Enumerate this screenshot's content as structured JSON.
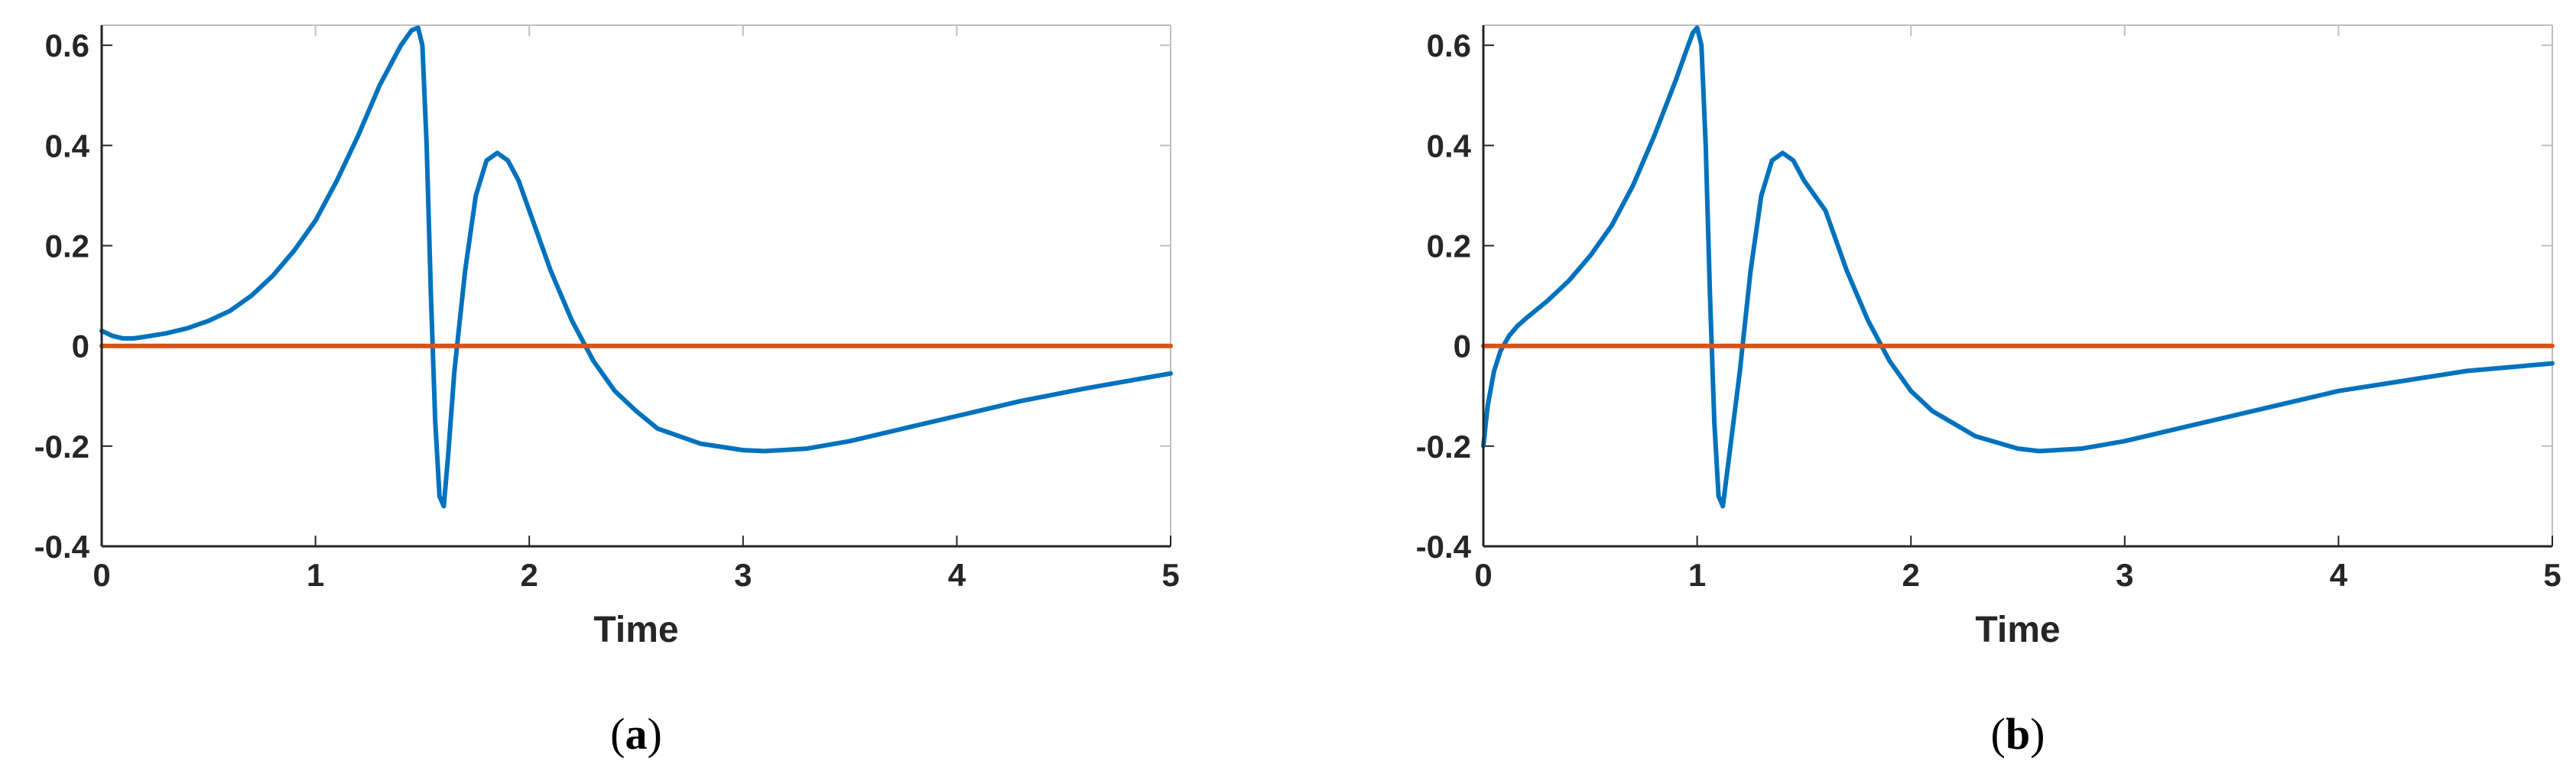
{
  "colors": {
    "series_blue": "#0072BD",
    "series_orange": "#D95319",
    "axis": "#262626",
    "box": "#BFBFBF"
  },
  "chart_data": [
    {
      "type": "line",
      "panel_label": {
        "open": "(",
        "letter": "a",
        "close": ")"
      },
      "xlabel": "Time",
      "ylabel": "",
      "xlim": [
        0,
        5
      ],
      "ylim": [
        -0.4,
        0.64
      ],
      "xticks": [
        0,
        1,
        2,
        3,
        4,
        5
      ],
      "xtick_labels": [
        "0",
        "1",
        "2",
        "3",
        "4",
        "5"
      ],
      "yticks": [
        -0.4,
        -0.2,
        0,
        0.2,
        0.4,
        0.6
      ],
      "ytick_labels": [
        "-0.4",
        "-0.2",
        "0",
        "0.2",
        "0.4",
        "0.6"
      ],
      "grid": false,
      "series": [
        {
          "color": "#0072BD",
          "x": [
            0,
            0.05,
            0.1,
            0.15,
            0.2,
            0.3,
            0.4,
            0.5,
            0.6,
            0.7,
            0.8,
            0.9,
            1.0,
            1.1,
            1.2,
            1.3,
            1.4,
            1.45,
            1.48,
            1.5,
            1.52,
            1.54,
            1.56,
            1.58,
            1.6,
            1.62,
            1.65,
            1.7,
            1.75,
            1.8,
            1.85,
            1.9,
            1.95,
            2.0,
            2.1,
            2.2,
            2.3,
            2.4,
            2.5,
            2.6,
            2.8,
            3.0,
            3.1,
            3.3,
            3.5,
            3.8,
            4.0,
            4.3,
            4.6,
            5.0
          ],
          "y": [
            0.03,
            0.02,
            0.015,
            0.015,
            0.018,
            0.025,
            0.035,
            0.05,
            0.07,
            0.1,
            0.14,
            0.19,
            0.25,
            0.33,
            0.42,
            0.52,
            0.6,
            0.63,
            0.635,
            0.6,
            0.4,
            0.1,
            -0.15,
            -0.3,
            -0.32,
            -0.22,
            -0.05,
            0.15,
            0.3,
            0.37,
            0.385,
            0.37,
            0.33,
            0.27,
            0.15,
            0.05,
            -0.03,
            -0.09,
            -0.13,
            -0.165,
            -0.195,
            -0.208,
            -0.21,
            -0.205,
            -0.19,
            -0.16,
            -0.14,
            -0.11,
            -0.085,
            -0.055
          ]
        },
        {
          "color": "#D95319",
          "x": [
            0,
            5
          ],
          "y": [
            0,
            0
          ]
        }
      ]
    },
    {
      "type": "line",
      "panel_label": {
        "open": "(",
        "letter": "b",
        "close": ")"
      },
      "xlabel": "Time",
      "ylabel": "",
      "xlim": [
        0,
        5
      ],
      "ylim": [
        -0.4,
        0.64
      ],
      "xticks": [
        0,
        1,
        2,
        3,
        4,
        5
      ],
      "xtick_labels": [
        "0",
        "1",
        "2",
        "3",
        "4",
        "5"
      ],
      "yticks": [
        -0.4,
        -0.2,
        0,
        0.2,
        0.4,
        0.6
      ],
      "ytick_labels": [
        "-0.4",
        "-0.2",
        "0",
        "0.2",
        "0.4",
        "0.6"
      ],
      "grid": false,
      "series": [
        {
          "color": "#0072BD",
          "x": [
            0,
            0.02,
            0.05,
            0.08,
            0.12,
            0.16,
            0.2,
            0.3,
            0.4,
            0.5,
            0.6,
            0.7,
            0.8,
            0.9,
            0.95,
            0.98,
            1.0,
            1.02,
            1.04,
            1.06,
            1.08,
            1.1,
            1.12,
            1.15,
            1.2,
            1.25,
            1.3,
            1.35,
            1.4,
            1.45,
            1.5,
            1.6,
            1.7,
            1.8,
            1.9,
            2.0,
            2.1,
            2.3,
            2.5,
            2.6,
            2.8,
            3.0,
            3.3,
            3.5,
            3.8,
            4.0,
            4.3,
            4.6,
            5.0
          ],
          "y": [
            -0.2,
            -0.12,
            -0.05,
            -0.01,
            0.02,
            0.04,
            0.055,
            0.09,
            0.13,
            0.18,
            0.24,
            0.32,
            0.42,
            0.53,
            0.59,
            0.625,
            0.635,
            0.6,
            0.4,
            0.1,
            -0.15,
            -0.3,
            -0.32,
            -0.22,
            -0.05,
            0.15,
            0.3,
            0.37,
            0.385,
            0.37,
            0.33,
            0.27,
            0.15,
            0.05,
            -0.03,
            -0.09,
            -0.13,
            -0.18,
            -0.205,
            -0.21,
            -0.205,
            -0.19,
            -0.16,
            -0.14,
            -0.11,
            -0.09,
            -0.07,
            -0.05,
            -0.035
          ]
        },
        {
          "color": "#D95319",
          "x": [
            0,
            5
          ],
          "y": [
            0,
            0
          ]
        }
      ]
    }
  ]
}
